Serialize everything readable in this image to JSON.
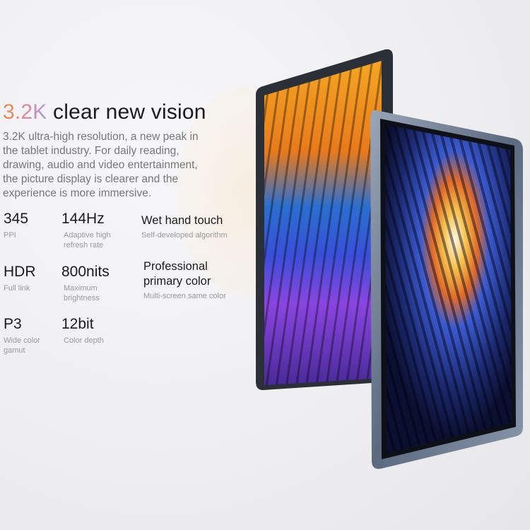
{
  "headline": {
    "highlight": "3.2K",
    "rest": " clear new vision"
  },
  "description": "3.2K ultra-high resolution, a new peak in the tablet industry. For daily reading, drawing, audio and video entertainment, the picture display is clearer and the experience is more immersive.",
  "specs": [
    {
      "value": "345",
      "label": "PPI"
    },
    {
      "value": "144Hz",
      "label": "Adaptive high refresh rate"
    },
    {
      "value": "Wet hand touch",
      "label": "Self-developed algorithm"
    },
    {
      "value": "HDR",
      "label": "Full link"
    },
    {
      "value": "800nits",
      "label": "Maximum brightness"
    },
    {
      "value": "Professional primary color",
      "label": "Multi-screen same color"
    },
    {
      "value": "P3",
      "label": "Wide color gamut"
    },
    {
      "value": "12bit",
      "label": "Color depth"
    }
  ],
  "colors": {
    "highlight_start": "#f08a3c",
    "highlight_end": "#a89be0",
    "frame": "#6f7d92"
  }
}
